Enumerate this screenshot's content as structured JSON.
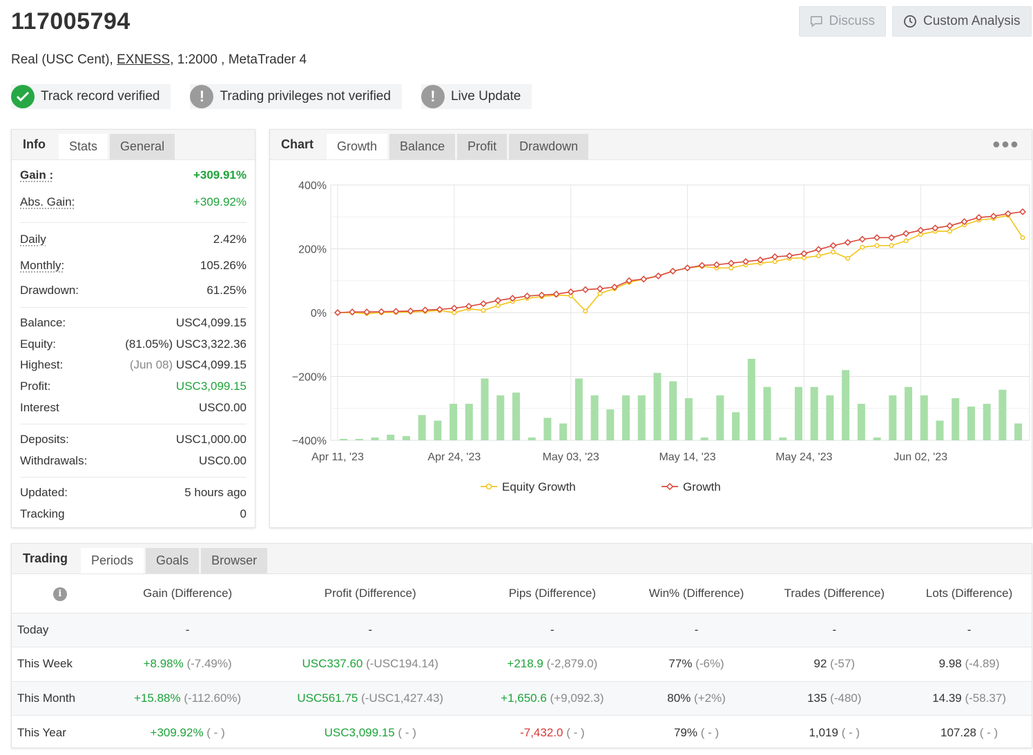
{
  "account": {
    "number": "117005794",
    "type": "Real (USC Cent), ",
    "broker": "EXNESS",
    "details": ", 1:2000 , MetaTrader 4"
  },
  "header_buttons": {
    "discuss": "Discuss",
    "custom_analysis": "Custom Analysis"
  },
  "badges": [
    {
      "label": "Track record verified",
      "status": "verified",
      "icon": "check-icon",
      "color": "#27a844"
    },
    {
      "label": "Trading privileges not verified",
      "status": "warning",
      "icon": "exclamation-icon",
      "color": "#9b9b9b"
    },
    {
      "label": "Live Update",
      "status": "warning",
      "icon": "exclamation-icon",
      "color": "#9b9b9b"
    }
  ],
  "info_panel": {
    "tabs": {
      "label": "Info",
      "items": [
        "Stats",
        "General"
      ],
      "active": "Stats"
    },
    "gain": {
      "label": "Gain :",
      "value": "+309.91%"
    },
    "abs_gain": {
      "label": "Abs. Gain:",
      "value": "+309.92%"
    },
    "daily": {
      "label": "Daily",
      "value": "2.42%"
    },
    "monthly": {
      "label": "Monthly:",
      "value": "105.26%"
    },
    "drawdown": {
      "label": "Drawdown:",
      "value": "61.25%"
    },
    "balance": {
      "label": "Balance:",
      "value": "USC4,099.15"
    },
    "equity": {
      "label": "Equity:",
      "pct": "(81.05%)",
      "value": "USC3,322.36"
    },
    "highest": {
      "label": "Highest:",
      "date": "(Jun 08)",
      "value": "USC4,099.15"
    },
    "profit": {
      "label": "Profit:",
      "value": "USC3,099.15"
    },
    "interest": {
      "label": "Interest",
      "value": "USC0.00"
    },
    "deposits": {
      "label": "Deposits:",
      "value": "USC1,000.00"
    },
    "withdrawals": {
      "label": "Withdrawals:",
      "value": "USC0.00"
    },
    "updated": {
      "label": "Updated:",
      "value": "5 hours ago"
    },
    "tracking": {
      "label": "Tracking",
      "value": "0"
    }
  },
  "chart_panel": {
    "tabs": {
      "label": "Chart",
      "items": [
        "Growth",
        "Balance",
        "Profit",
        "Drawdown"
      ],
      "active": "Growth"
    },
    "menu_icon": "ellipsis-icon"
  },
  "chart_data": {
    "type": "line",
    "ylim": [
      -400,
      400
    ],
    "y_ticks": [
      400,
      200,
      0,
      -200,
      -400
    ],
    "y_tick_labels": [
      "400%",
      "200%",
      "0%",
      "−200%",
      "−400%"
    ],
    "x_tick_labels": [
      "Apr 11, '23",
      "Apr 24, '23",
      "May 03, '23",
      "May 14, '23",
      "May 24, '23",
      "Jun 02, '23"
    ],
    "x_tick_index": [
      0,
      8,
      16,
      24,
      32,
      40
    ],
    "grid": true,
    "legend_position": "bottom",
    "series": [
      {
        "name": "Equity Growth",
        "color": "#f2c318",
        "values": [
          0,
          0,
          -3,
          0,
          1,
          2,
          4,
          7,
          0,
          12,
          7,
          22,
          35,
          45,
          50,
          55,
          53,
          5,
          60,
          75,
          95,
          105,
          115,
          130,
          140,
          145,
          140,
          140,
          150,
          155,
          160,
          170,
          172,
          178,
          190,
          170,
          205,
          210,
          210,
          225,
          245,
          255,
          255,
          275,
          290,
          295,
          305,
          235
        ]
      },
      {
        "name": "Growth",
        "color": "#d9473a",
        "values": [
          0,
          2,
          2,
          3,
          4,
          5,
          8,
          10,
          14,
          20,
          28,
          38,
          45,
          52,
          55,
          58,
          65,
          72,
          75,
          80,
          100,
          105,
          115,
          130,
          140,
          148,
          150,
          155,
          160,
          165,
          175,
          178,
          185,
          198,
          210,
          220,
          230,
          235,
          235,
          248,
          258,
          265,
          272,
          285,
          298,
          302,
          310,
          316
        ]
      }
    ],
    "bars": {
      "name": "Profit",
      "color": "#a8dfa8",
      "values": [
        1,
        1,
        2,
        4,
        3,
        18,
        14,
        26,
        26,
        44,
        32,
        34,
        2,
        16,
        12,
        44,
        32,
        22,
        32,
        32,
        48,
        42,
        30,
        2,
        32,
        20,
        58,
        38,
        2,
        38,
        38,
        32,
        50,
        26,
        2,
        32,
        38,
        32,
        14,
        30,
        24,
        26,
        36,
        12
      ]
    }
  },
  "trading_panel": {
    "tabs": {
      "label": "Trading",
      "items": [
        "Periods",
        "Goals",
        "Browser"
      ],
      "active": "Periods"
    },
    "columns": [
      "Gain (Difference)",
      "Profit (Difference)",
      "Pips (Difference)",
      "Win% (Difference)",
      "Trades (Difference)",
      "Lots (Difference)"
    ],
    "rows": [
      {
        "period": "Today",
        "gain": "-",
        "gain_diff": "",
        "profit": "-",
        "profit_diff": "",
        "pips": "-",
        "pips_diff": "",
        "win": "-",
        "win_diff": "",
        "trades": "-",
        "trades_diff": "",
        "lots": "-",
        "lots_diff": ""
      },
      {
        "period": "This Week",
        "gain": "+8.98%",
        "gain_diff": " (-7.49%)",
        "profit": "USC337.60",
        "profit_diff": " (-USC194.14)",
        "pips": "+218.9",
        "pips_diff": " (-2,879.0)",
        "win": "77%",
        "win_diff": " (-6%)",
        "trades": "92",
        "trades_diff": " (-57)",
        "lots": "9.98",
        "lots_diff": " (-4.89)"
      },
      {
        "period": "This Month",
        "gain": "+15.88%",
        "gain_diff": " (-112.60%)",
        "profit": "USC561.75",
        "profit_diff": " (-USC1,427.43)",
        "pips": "+1,650.6",
        "pips_diff": " (+9,092.3)",
        "win": "80%",
        "win_diff": " (+2%)",
        "trades": "135",
        "trades_diff": " (-480)",
        "lots": "14.39",
        "lots_diff": " (-58.37)"
      },
      {
        "period": "This Year",
        "gain": "+309.92%",
        "gain_diff": " ( - )",
        "profit": "USC3,099.15",
        "profit_diff": " ( - )",
        "pips": "-7,432.0",
        "pips_diff": " ( - )",
        "win": "79%",
        "win_diff": " ( - )",
        "trades": "1,019",
        "trades_diff": " ( - )",
        "lots": "107.28",
        "lots_diff": " ( - )"
      }
    ]
  }
}
